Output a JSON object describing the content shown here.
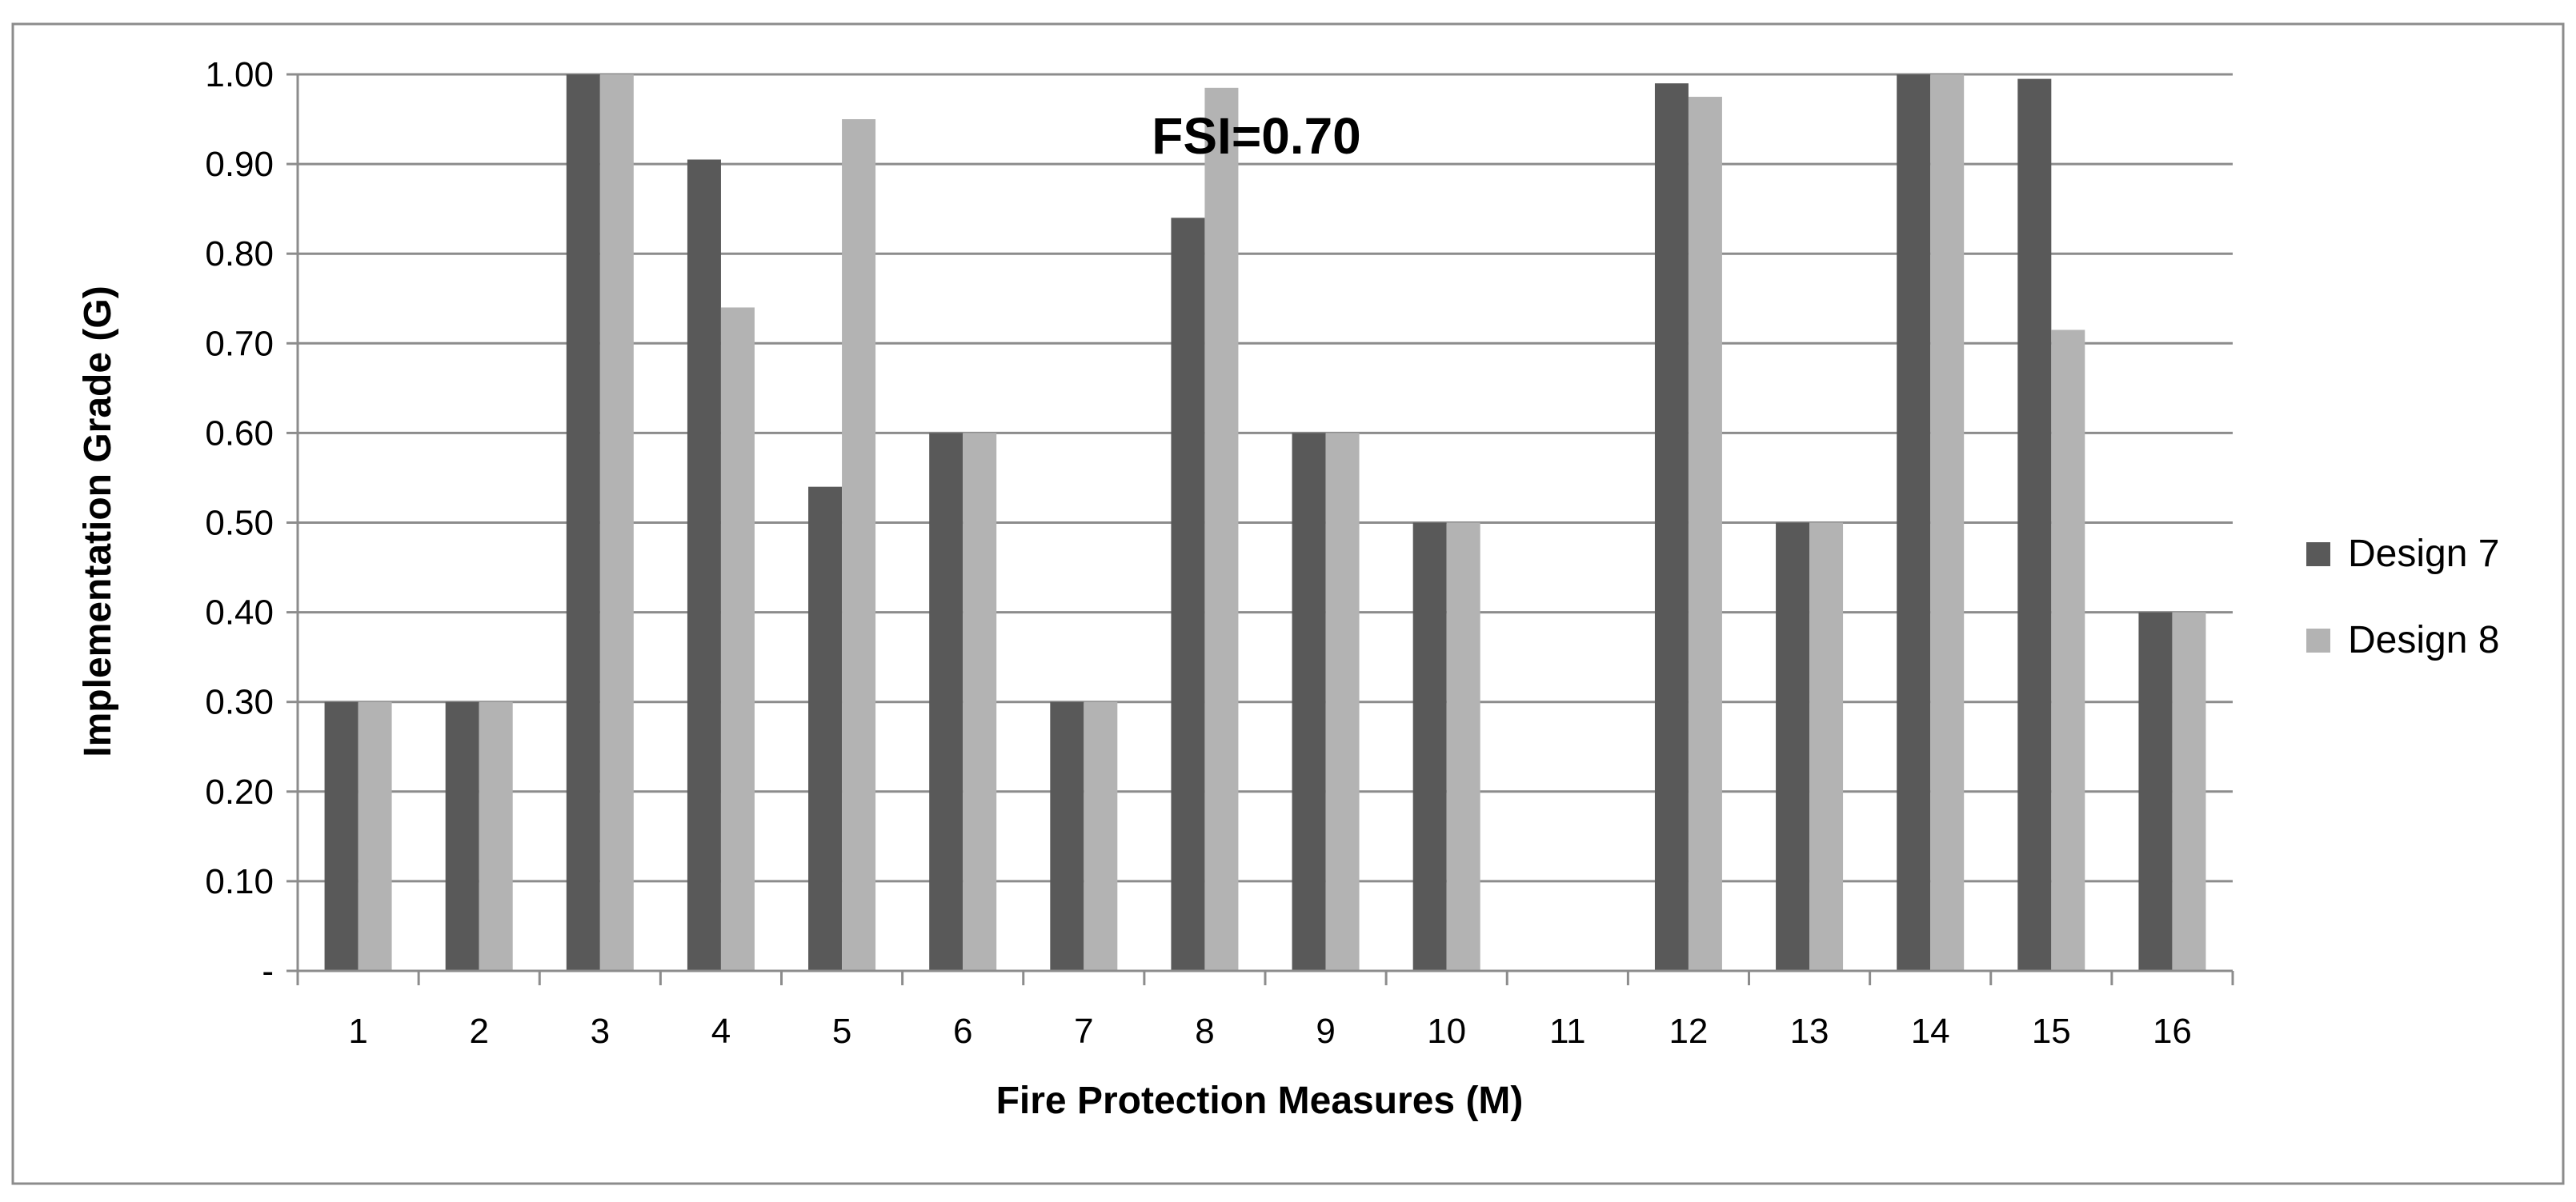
{
  "chart_data": {
    "type": "bar",
    "title": "",
    "xlabel": "Fire Protection Measures (M)",
    "ylabel": "Implementation Grade (G)",
    "annotation": "FSI=0.70",
    "categories": [
      "1",
      "2",
      "3",
      "4",
      "5",
      "6",
      "7",
      "8",
      "9",
      "10",
      "11",
      "12",
      "13",
      "14",
      "15",
      "16"
    ],
    "ylim": [
      0,
      1
    ],
    "yticks": [
      {
        "value": 0,
        "label": "-"
      },
      {
        "value": 0.1,
        "label": "0.10"
      },
      {
        "value": 0.2,
        "label": "0.20"
      },
      {
        "value": 0.3,
        "label": "0.30"
      },
      {
        "value": 0.4,
        "label": "0.40"
      },
      {
        "value": 0.5,
        "label": "0.50"
      },
      {
        "value": 0.6,
        "label": "0.60"
      },
      {
        "value": 0.7,
        "label": "0.70"
      },
      {
        "value": 0.8,
        "label": "0.80"
      },
      {
        "value": 0.9,
        "label": "0.90"
      },
      {
        "value": 1.0,
        "label": "1.00"
      }
    ],
    "grid": true,
    "legend_position": "right",
    "series": [
      {
        "name": "Design 7",
        "color": "#595959",
        "values": [
          0.3,
          0.3,
          1.0,
          0.905,
          0.54,
          0.6,
          0.3,
          0.84,
          0.6,
          0.5,
          0,
          0.99,
          0.5,
          1.0,
          0.995,
          0.4
        ]
      },
      {
        "name": "Design 8",
        "color": "#b3b3b3",
        "values": [
          0.3,
          0.3,
          1.0,
          0.74,
          0.95,
          0.6,
          0.3,
          0.985,
          0.6,
          0.5,
          0,
          0.975,
          0.5,
          1.0,
          0.715,
          0.4
        ]
      }
    ]
  }
}
